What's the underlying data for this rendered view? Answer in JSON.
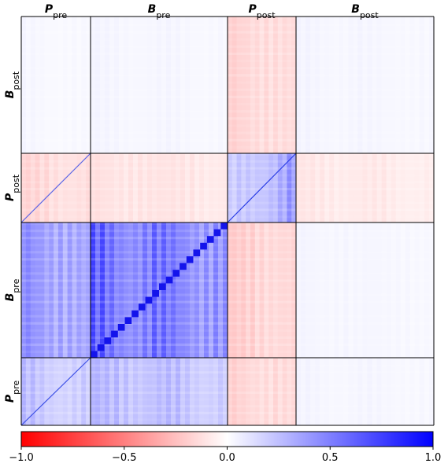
{
  "chart_data": {
    "type": "heatmap",
    "title": "",
    "column_blocks": [
      {
        "name": "P",
        "sub": "pre"
      },
      {
        "name": "B",
        "sub": "pre"
      },
      {
        "name": "P",
        "sub": "post"
      },
      {
        "name": "B",
        "sub": "post"
      }
    ],
    "row_blocks": [
      {
        "name": "B",
        "sub": "post"
      },
      {
        "name": "P",
        "sub": "post"
      },
      {
        "name": "B",
        "sub": "pre"
      },
      {
        "name": "P",
        "sub": "pre"
      }
    ],
    "block_mean_values": [
      [
        0.04,
        0.05,
        -0.22,
        0.05
      ],
      [
        -0.2,
        -0.15,
        0.35,
        -0.12
      ],
      [
        0.55,
        0.72,
        -0.25,
        0.05
      ],
      [
        0.3,
        0.35,
        -0.22,
        0.05
      ]
    ],
    "colorbar": {
      "vmin": -1.0,
      "vmax": 1.0,
      "ticks": [
        -1.0,
        -0.5,
        0.0,
        0.5,
        1.0
      ],
      "tick_labels": [
        "−1.0",
        "−0.5",
        "0.0",
        "0.5",
        "1.0"
      ],
      "low_color": "#ff0000",
      "mid_color": "#ffffff",
      "high_color": "#0000ff",
      "placement": "bottom"
    },
    "grid": false
  }
}
